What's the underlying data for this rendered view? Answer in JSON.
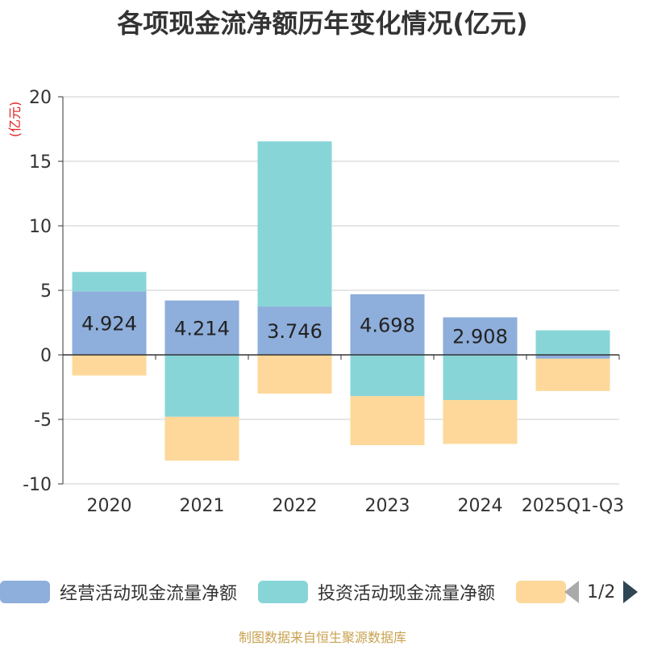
{
  "title": "各项现金流净额历年变化情况(亿元)",
  "unit_label": "(亿元)",
  "source": "制图数据来自恒生聚源数据库",
  "legend": {
    "items": [
      {
        "label": "经营活动现金流量净额",
        "color": "#8eaedb"
      },
      {
        "label": "投资活动现金流量净额",
        "color": "#88d5d8"
      },
      {
        "label": "",
        "color": "#fdd89a"
      }
    ],
    "page": "1/2"
  },
  "chart_data": {
    "type": "bar",
    "stacked": true,
    "title": "各项现金流净额历年变化情况(亿元)",
    "ylabel": "(亿元)",
    "ylim": [
      -10,
      20
    ],
    "yticks": [
      20,
      15,
      10,
      5,
      0,
      -5,
      -10
    ],
    "categories": [
      "2020",
      "2021",
      "2022",
      "2023",
      "2024",
      "2025Q1-Q3"
    ],
    "series": [
      {
        "name": "经营活动现金流量净额",
        "color": "#8eaedb",
        "values": [
          4.924,
          4.214,
          3.746,
          4.698,
          2.908,
          -0.3
        ],
        "labels": [
          "4.924",
          "4.214",
          "3.746",
          "4.698",
          "2.908",
          ""
        ]
      },
      {
        "name": "投资活动现金流量净额",
        "color": "#88d5d8",
        "values": [
          1.5,
          -4.8,
          12.8,
          -3.2,
          -3.5,
          1.9
        ]
      },
      {
        "name": "",
        "color": "#fdd89a",
        "values": [
          -1.6,
          -3.4,
          -3.0,
          -3.8,
          -3.4,
          -2.5
        ]
      }
    ]
  }
}
